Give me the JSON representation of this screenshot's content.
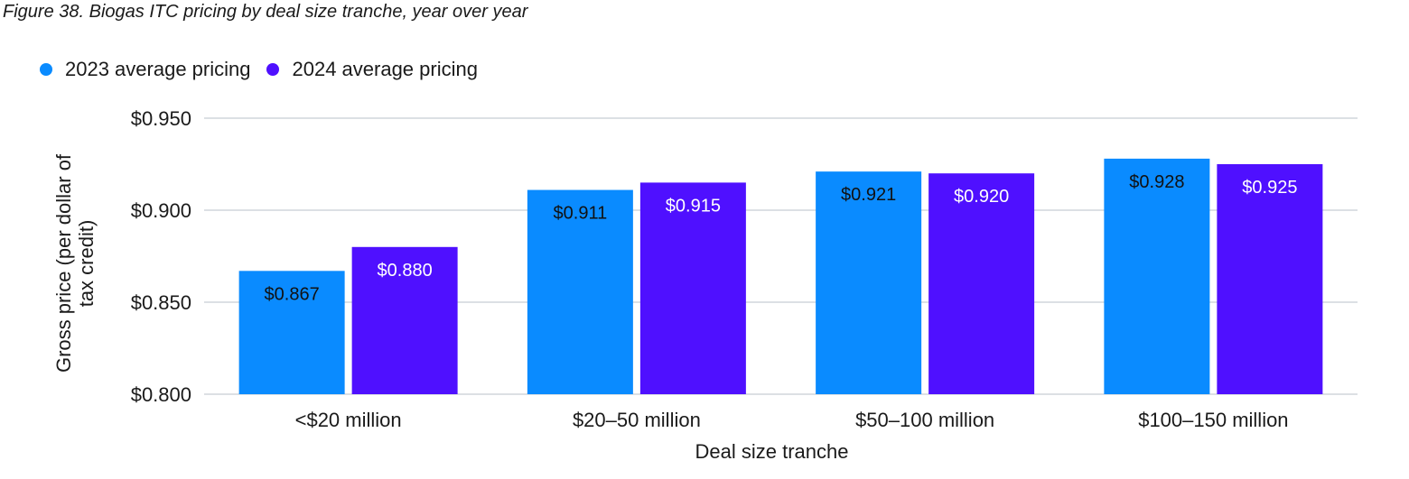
{
  "figure_title": "Figure 38. Biogas ITC pricing by deal size tranche, year over year",
  "colors": {
    "series_2023": "#0A8BFF",
    "series_2024": "#4F10FF",
    "gridline": "#b8c0c8",
    "label_dark": "#111111",
    "label_light": "#ffffff"
  },
  "chart_data": {
    "type": "bar",
    "title": "Figure 38. Biogas ITC pricing by deal size tranche, year over year",
    "xlabel": "Deal size tranche",
    "ylabel": "Gross price (per dollar of tax credit)",
    "ylabel_lines": [
      "Gross price (per dollar of",
      "tax credit)"
    ],
    "categories": [
      "<$20 million",
      "$20–50 million",
      "$50–100 million",
      "$100–150 million"
    ],
    "ylim": [
      0.8,
      0.95
    ],
    "yticks": [
      0.8,
      0.85,
      0.9,
      0.95
    ],
    "ytick_labels": [
      "$0.800",
      "$0.850",
      "$0.900",
      "$0.950"
    ],
    "grid": true,
    "legend_position": "top-left",
    "series": [
      {
        "name": "2023 average pricing",
        "values": [
          0.867,
          0.911,
          0.921,
          0.928
        ],
        "labels": [
          "$0.867",
          "$0.911",
          "$0.921",
          "$0.928"
        ]
      },
      {
        "name": "2024 average pricing",
        "values": [
          0.88,
          0.915,
          0.92,
          0.925
        ],
        "labels": [
          "$0.880",
          "$0.915",
          "$0.920",
          "$0.925"
        ]
      }
    ]
  }
}
